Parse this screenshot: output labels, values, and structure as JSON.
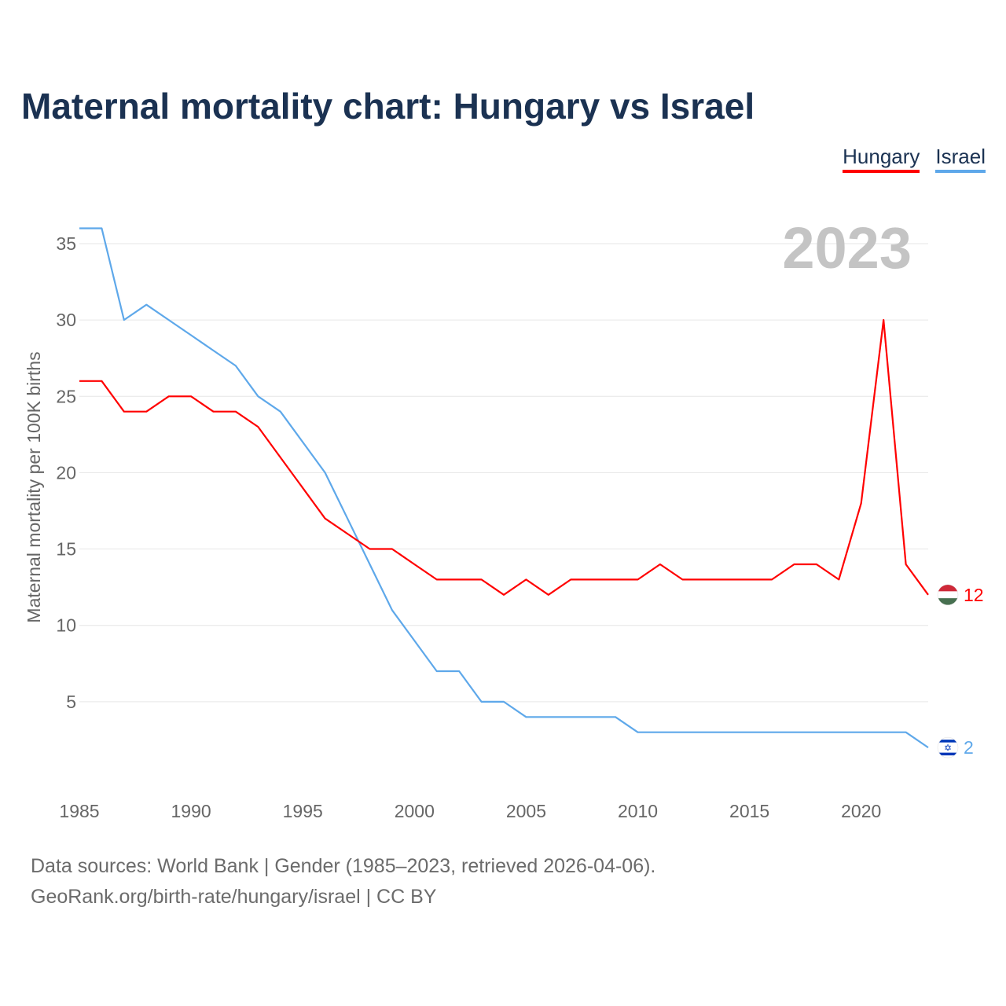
{
  "chart_data": {
    "type": "line",
    "title": "Maternal mortality chart: Hungary vs Israel",
    "xlabel": "",
    "ylabel": "Maternal mortality per 100K births",
    "xlim": [
      1985,
      2023
    ],
    "ylim": [
      0,
      37
    ],
    "grid": true,
    "legend_placement": "top-right",
    "year_label": "2023",
    "x_ticks": [
      1985,
      1990,
      1995,
      2000,
      2005,
      2010,
      2015,
      2020
    ],
    "y_ticks": [
      5,
      10,
      15,
      20,
      25,
      30,
      35
    ],
    "x": [
      1985,
      1986,
      1987,
      1988,
      1989,
      1990,
      1991,
      1992,
      1993,
      1994,
      1995,
      1996,
      1997,
      1998,
      1999,
      2000,
      2001,
      2002,
      2003,
      2004,
      2005,
      2006,
      2007,
      2008,
      2009,
      2010,
      2011,
      2012,
      2013,
      2014,
      2015,
      2016,
      2017,
      2018,
      2019,
      2020,
      2021,
      2022,
      2023
    ],
    "series": [
      {
        "name": "Hungary",
        "color": "#ff0000",
        "end_label": "12",
        "values": [
          26,
          26,
          24,
          24,
          25,
          25,
          24,
          24,
          23,
          21,
          19,
          17,
          16,
          15,
          15,
          14,
          13,
          13,
          13,
          12,
          13,
          12,
          13,
          13,
          13,
          13,
          14,
          13,
          13,
          13,
          13,
          13,
          14,
          14,
          13,
          18,
          30,
          14,
          12
        ]
      },
      {
        "name": "Israel",
        "color": "#5ea8ea",
        "end_label": "2",
        "values": [
          36,
          36,
          30,
          31,
          30,
          29,
          28,
          27,
          25,
          24,
          22,
          20,
          17,
          14,
          11,
          9,
          7,
          7,
          5,
          5,
          4,
          4,
          4,
          4,
          4,
          3,
          3,
          3,
          3,
          3,
          3,
          3,
          3,
          3,
          3,
          3,
          3,
          3,
          2
        ]
      }
    ]
  },
  "sources": {
    "line1": "Data sources: World Bank | Gender (1985–2023, retrieved 2026-04-06).",
    "line2": "GeoRank.org/birth-rate/hungary/israel | CC BY"
  }
}
